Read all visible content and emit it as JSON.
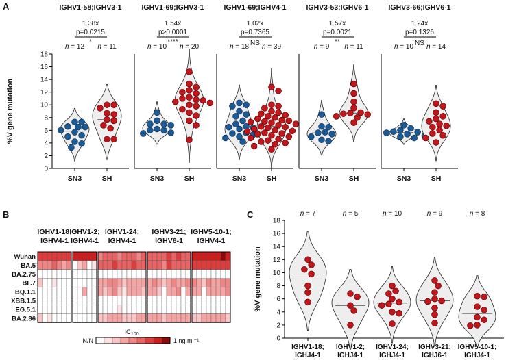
{
  "chart_data": [
    {
      "panel": "A",
      "type": "violin",
      "ylabel": "%V gene mutation",
      "ylim": [
        0,
        18
      ],
      "yticks": [
        0,
        2,
        4,
        6,
        8,
        10,
        12,
        14,
        16,
        18
      ],
      "categories": [
        "SN3",
        "SH"
      ],
      "groups": [
        {
          "name": "IGHV1-58;IGHV3-1",
          "fold": "1.38x",
          "p": "p=0.0215",
          "sig": "*",
          "n": [
            "n = 12",
            "n = 11"
          ],
          "SN3": [
            7.3,
            7.3,
            6.5,
            6.6,
            6.5,
            6.0,
            5.7,
            5.2,
            5.0,
            4.2,
            3.9,
            3.3
          ],
          "SH": [
            10.0,
            10.0,
            9.5,
            8.7,
            8.5,
            7.7,
            7.5,
            6.8,
            6.3,
            4.6,
            4.6
          ]
        },
        {
          "name": "IGHV1-69;IGHV3-1",
          "fold": "1.54x",
          "p": "p>0.0001",
          "sig": "****",
          "n": [
            "n = 10",
            "n = 20"
          ],
          "SN3": [
            8.8,
            7.5,
            7.0,
            7.0,
            6.8,
            6.2,
            6.0,
            6.0,
            5.6,
            5.5
          ],
          "SH": [
            15.2,
            13.3,
            12.8,
            12.3,
            12.0,
            11.8,
            11.2,
            11.0,
            10.8,
            10.7,
            10.5,
            10.3,
            10.0,
            9.8,
            9.3,
            8.8,
            8.3,
            7.5,
            6.8,
            4.5
          ]
        },
        {
          "name": "IGHV1-69;IGHV4-1",
          "fold": "1.02x",
          "p": "p=0.7365",
          "sig": "NS",
          "n": [
            "n = 18",
            "n = 39"
          ],
          "SN3": [
            10.3,
            10.0,
            9.8,
            9.0,
            8.5,
            8.2,
            7.5,
            7.0,
            6.6,
            6.5,
            6.4,
            6.2,
            5.6,
            5.5,
            5.3,
            5.0,
            4.8,
            4.2
          ],
          "SH": [
            12.8,
            12.2,
            10.0,
            9.8,
            9.5,
            9.0,
            8.8,
            8.6,
            8.4,
            8.2,
            8.0,
            7.8,
            7.6,
            7.5,
            7.4,
            7.3,
            7.2,
            7.0,
            6.8,
            6.6,
            6.5,
            6.4,
            6.2,
            6.0,
            5.9,
            5.8,
            5.6,
            5.5,
            5.4,
            5.2,
            5.0,
            4.8,
            4.6,
            4.4,
            4.2,
            4.0,
            3.8,
            3.5,
            3.0
          ]
        },
        {
          "name": "IGHV3-53;IGHV6-1",
          "fold": "1.57x",
          "p": "p=0.0021",
          "sig": "**",
          "n": [
            "n = 9",
            "n = 11"
          ],
          "SN3": [
            8.5,
            6.6,
            6.5,
            5.7,
            5.6,
            5.4,
            5.0,
            4.5,
            4.3
          ],
          "SH": [
            13.3,
            11.8,
            10.5,
            9.5,
            8.8,
            8.7,
            8.6,
            8.5,
            8.2,
            8.0,
            7.2
          ]
        },
        {
          "name": "IGHV3-66;IGHV6-1",
          "fold": "1.24x",
          "p": "p=0.1326",
          "sig": "NS",
          "n": [
            "n = 10",
            "n = 14"
          ],
          "SN3": [
            6.8,
            6.3,
            6.0,
            5.8,
            5.7,
            5.6,
            5.4,
            5.2,
            5.0,
            4.8
          ],
          "SH": [
            10.2,
            9.8,
            8.8,
            8.2,
            7.8,
            7.4,
            7.0,
            6.7,
            6.5,
            6.0,
            5.5,
            5.2,
            4.8,
            4.1
          ]
        }
      ]
    },
    {
      "panel": "B",
      "type": "heatmap",
      "rows": [
        "Wuhan",
        "BA.5",
        "BA.2.75",
        "BF.7",
        "BQ.1.1",
        "XBB.1.5",
        "EG.5.1",
        "BA.2.86"
      ],
      "groups": [
        {
          "label1": "IGHV1-18;",
          "label2": "IGHV4-1",
          "cols": 7
        },
        {
          "label1": "IGHV1-2;",
          "label2": "IGHV4-1",
          "cols": 5
        },
        {
          "label1": "IGHV1-24;",
          "label2": "IGHV4-1",
          "cols": 10
        },
        {
          "label1": "IGHV3-21;",
          "label2": "IGHV6-1",
          "cols": 9
        },
        {
          "label1": "IGHV5-10-1;",
          "label2": "IGHV4-1",
          "cols": 8
        }
      ],
      "legend": {
        "title": "IC100",
        "left": "N/N",
        "right": "1 ng ml⁻¹",
        "steps": 8
      },
      "values": [
        [
          6,
          6,
          6,
          6,
          6,
          6,
          6,
          7,
          7,
          7,
          7,
          7,
          4,
          5,
          5,
          5,
          4,
          5,
          5,
          5,
          4,
          5,
          5,
          5,
          5,
          5,
          6,
          5,
          6,
          5,
          5,
          7,
          7,
          7,
          7,
          7,
          7,
          8,
          7
        ],
        [
          4,
          4,
          4,
          5,
          4,
          3,
          4,
          0,
          2,
          3,
          0,
          1,
          5,
          5,
          5,
          6,
          5,
          5,
          5,
          6,
          5,
          5,
          5,
          5,
          5,
          4,
          6,
          5,
          5,
          5,
          5,
          6,
          6,
          6,
          6,
          6,
          6,
          6,
          6
        ],
        [
          0,
          0,
          0,
          0,
          0,
          0,
          0,
          0,
          0,
          0,
          0,
          0,
          0,
          0,
          0,
          0,
          0,
          0,
          0,
          0,
          0,
          0,
          0,
          0,
          0,
          0,
          0,
          0,
          0,
          0,
          0,
          0,
          0,
          0,
          0,
          0,
          0,
          0,
          0
        ],
        [
          2,
          0,
          0,
          1,
          0,
          0,
          0,
          0,
          0,
          0,
          0,
          0,
          3,
          3,
          4,
          4,
          3,
          2,
          3,
          3,
          3,
          3,
          3,
          4,
          3,
          2,
          3,
          4,
          3,
          3,
          4,
          4,
          3,
          2,
          4,
          3,
          3,
          4,
          4
        ],
        [
          0,
          0,
          0,
          0,
          0,
          0,
          0,
          0,
          0,
          3,
          0,
          0,
          3,
          2,
          3,
          4,
          2,
          1,
          3,
          3,
          3,
          2,
          3,
          3,
          2,
          0,
          3,
          3,
          4,
          0,
          3,
          3,
          3,
          0,
          3,
          3,
          3,
          3,
          4
        ],
        [
          0,
          0,
          0,
          0,
          0,
          0,
          0,
          0,
          0,
          0,
          0,
          0,
          0,
          0,
          0,
          0,
          0,
          0,
          0,
          0,
          0,
          0,
          0,
          0,
          0,
          0,
          0,
          0,
          0,
          0,
          0,
          0,
          0,
          0,
          0,
          0,
          0,
          0,
          0
        ],
        [
          0,
          0,
          0,
          0,
          0,
          0,
          0,
          0,
          0,
          0,
          0,
          0,
          0,
          0,
          0,
          0,
          1,
          0,
          0,
          0,
          0,
          0,
          0,
          0,
          0,
          0,
          0,
          0,
          0,
          0,
          0,
          0,
          0,
          0,
          0,
          0,
          0,
          0,
          0
        ],
        [
          2,
          0,
          1,
          0,
          0,
          0,
          0,
          0,
          0,
          0,
          0,
          0,
          2,
          2,
          3,
          3,
          3,
          2,
          2,
          2,
          3,
          3,
          3,
          3,
          3,
          2,
          3,
          3,
          3,
          3,
          3,
          2,
          2,
          3,
          3,
          3,
          3,
          3,
          2
        ]
      ]
    },
    {
      "panel": "C",
      "type": "violin",
      "ylabel": "%V gene mutation",
      "ylim": [
        0,
        18
      ],
      "yticks": [
        0,
        2,
        4,
        6,
        8,
        10,
        12,
        14,
        16,
        18
      ],
      "categories": [
        {
          "l1": "IGHV1-18;",
          "l2": "IGHJ4-1",
          "n": "n = 7",
          "values": [
            12.0,
            11.2,
            10.5,
            9.8,
            8.0,
            7.0,
            5.5
          ]
        },
        {
          "l1": "IGHV1-2;",
          "l2": "IGHJ4-1",
          "n": "n = 5",
          "values": [
            6.8,
            6.3,
            5.0,
            4.2,
            2.0
          ]
        },
        {
          "l1": "IGHV1-24;",
          "l2": "IGHJ4-1",
          "n": "n = 10",
          "values": [
            8.0,
            7.2,
            6.8,
            6.0,
            5.5,
            5.2,
            5.0,
            4.0,
            3.8,
            2.2
          ]
        },
        {
          "l1": "IGHV3-21;",
          "l2": "IGHJ6-1",
          "n": "n = 9",
          "values": [
            8.8,
            8.0,
            7.0,
            6.0,
            5.7,
            5.6,
            4.6,
            3.6,
            2.3
          ]
        },
        {
          "l1": "IGHV5-10-1;",
          "l2": "IGHJ4-1",
          "n": "n = 8",
          "values": [
            6.4,
            6.3,
            4.8,
            4.3,
            3.2,
            2.8,
            2.0,
            1.9
          ]
        }
      ]
    }
  ],
  "panel_letters": {
    "a": "A",
    "b": "B",
    "c": "C"
  },
  "colors": {
    "blue": "#1c5a96",
    "red": "#c0161c",
    "heat": [
      "#ffffff",
      "#fde3e3",
      "#f9c4c4",
      "#f5a3a3",
      "#f08585",
      "#e86363",
      "#de3c3c",
      "#cf1d1d",
      "#8c0a0a"
    ]
  }
}
